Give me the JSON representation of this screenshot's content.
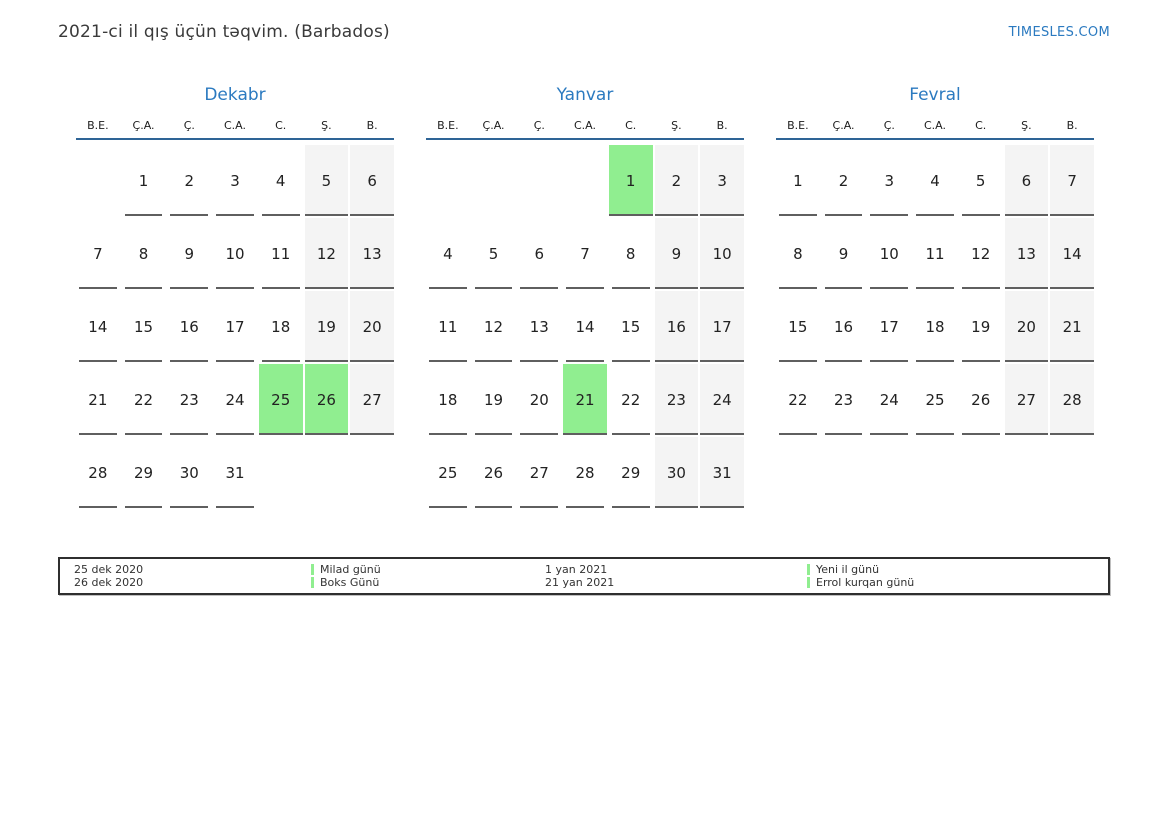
{
  "page": {
    "title": "2021-ci il qış üçün təqvim. (Barbados)",
    "brand": "TIMESLES.COM"
  },
  "colors": {
    "accent_blue": "#2b7ac0",
    "rule_blue": "#2e6496",
    "holiday_green": "#90ee90",
    "weekend_gray": "#f4f4f4",
    "underline_gray": "#5f5f5f"
  },
  "calendar": {
    "weekdays": [
      "B.E.",
      "Ç.A.",
      "Ç.",
      "C.A.",
      "C.",
      "Ş.",
      "B."
    ],
    "months": [
      {
        "name": "Dekabr",
        "weeks": [
          [
            {
              "d": "",
              "k": ""
            },
            {
              "d": "1",
              "k": "day"
            },
            {
              "d": "2",
              "k": "day"
            },
            {
              "d": "3",
              "k": "day"
            },
            {
              "d": "4",
              "k": "day"
            },
            {
              "d": "5",
              "k": "we"
            },
            {
              "d": "6",
              "k": "we"
            }
          ],
          [
            {
              "d": "7",
              "k": "day"
            },
            {
              "d": "8",
              "k": "day"
            },
            {
              "d": "9",
              "k": "day"
            },
            {
              "d": "10",
              "k": "day"
            },
            {
              "d": "11",
              "k": "day"
            },
            {
              "d": "12",
              "k": "we"
            },
            {
              "d": "13",
              "k": "we"
            }
          ],
          [
            {
              "d": "14",
              "k": "day"
            },
            {
              "d": "15",
              "k": "day"
            },
            {
              "d": "16",
              "k": "day"
            },
            {
              "d": "17",
              "k": "day"
            },
            {
              "d": "18",
              "k": "day"
            },
            {
              "d": "19",
              "k": "we"
            },
            {
              "d": "20",
              "k": "we"
            }
          ],
          [
            {
              "d": "21",
              "k": "day"
            },
            {
              "d": "22",
              "k": "day"
            },
            {
              "d": "23",
              "k": "day"
            },
            {
              "d": "24",
              "k": "day"
            },
            {
              "d": "25",
              "k": "hol"
            },
            {
              "d": "26",
              "k": "hol"
            },
            {
              "d": "27",
              "k": "we"
            }
          ],
          [
            {
              "d": "28",
              "k": "day"
            },
            {
              "d": "29",
              "k": "day"
            },
            {
              "d": "30",
              "k": "day"
            },
            {
              "d": "31",
              "k": "day"
            },
            {
              "d": "",
              "k": ""
            },
            {
              "d": "",
              "k": ""
            },
            {
              "d": "",
              "k": ""
            }
          ]
        ]
      },
      {
        "name": "Yanvar",
        "weeks": [
          [
            {
              "d": "",
              "k": ""
            },
            {
              "d": "",
              "k": ""
            },
            {
              "d": "",
              "k": ""
            },
            {
              "d": "",
              "k": ""
            },
            {
              "d": "1",
              "k": "hol"
            },
            {
              "d": "2",
              "k": "we"
            },
            {
              "d": "3",
              "k": "we"
            }
          ],
          [
            {
              "d": "4",
              "k": "day"
            },
            {
              "d": "5",
              "k": "day"
            },
            {
              "d": "6",
              "k": "day"
            },
            {
              "d": "7",
              "k": "day"
            },
            {
              "d": "8",
              "k": "day"
            },
            {
              "d": "9",
              "k": "we"
            },
            {
              "d": "10",
              "k": "we"
            }
          ],
          [
            {
              "d": "11",
              "k": "day"
            },
            {
              "d": "12",
              "k": "day"
            },
            {
              "d": "13",
              "k": "day"
            },
            {
              "d": "14",
              "k": "day"
            },
            {
              "d": "15",
              "k": "day"
            },
            {
              "d": "16",
              "k": "we"
            },
            {
              "d": "17",
              "k": "we"
            }
          ],
          [
            {
              "d": "18",
              "k": "day"
            },
            {
              "d": "19",
              "k": "day"
            },
            {
              "d": "20",
              "k": "day"
            },
            {
              "d": "21",
              "k": "hol"
            },
            {
              "d": "22",
              "k": "day"
            },
            {
              "d": "23",
              "k": "we"
            },
            {
              "d": "24",
              "k": "we"
            }
          ],
          [
            {
              "d": "25",
              "k": "day"
            },
            {
              "d": "26",
              "k": "day"
            },
            {
              "d": "27",
              "k": "day"
            },
            {
              "d": "28",
              "k": "day"
            },
            {
              "d": "29",
              "k": "day"
            },
            {
              "d": "30",
              "k": "we"
            },
            {
              "d": "31",
              "k": "we"
            }
          ]
        ]
      },
      {
        "name": "Fevral",
        "weeks": [
          [
            {
              "d": "1",
              "k": "day"
            },
            {
              "d": "2",
              "k": "day"
            },
            {
              "d": "3",
              "k": "day"
            },
            {
              "d": "4",
              "k": "day"
            },
            {
              "d": "5",
              "k": "day"
            },
            {
              "d": "6",
              "k": "we"
            },
            {
              "d": "7",
              "k": "we"
            }
          ],
          [
            {
              "d": "8",
              "k": "day"
            },
            {
              "d": "9",
              "k": "day"
            },
            {
              "d": "10",
              "k": "day"
            },
            {
              "d": "11",
              "k": "day"
            },
            {
              "d": "12",
              "k": "day"
            },
            {
              "d": "13",
              "k": "we"
            },
            {
              "d": "14",
              "k": "we"
            }
          ],
          [
            {
              "d": "15",
              "k": "day"
            },
            {
              "d": "16",
              "k": "day"
            },
            {
              "d": "17",
              "k": "day"
            },
            {
              "d": "18",
              "k": "day"
            },
            {
              "d": "19",
              "k": "day"
            },
            {
              "d": "20",
              "k": "we"
            },
            {
              "d": "21",
              "k": "we"
            }
          ],
          [
            {
              "d": "22",
              "k": "day"
            },
            {
              "d": "23",
              "k": "day"
            },
            {
              "d": "24",
              "k": "day"
            },
            {
              "d": "25",
              "k": "day"
            },
            {
              "d": "26",
              "k": "day"
            },
            {
              "d": "27",
              "k": "we"
            },
            {
              "d": "28",
              "k": "we"
            }
          ]
        ]
      }
    ]
  },
  "legend": {
    "groups": [
      {
        "kind": "dates",
        "lines": [
          "25 dek 2020",
          "26 dek 2020"
        ]
      },
      {
        "kind": "holidays",
        "lines": [
          "Milad günü",
          "Boks Günü"
        ]
      },
      {
        "kind": "dates",
        "lines": [
          "1 yan 2021",
          "21 yan 2021"
        ]
      },
      {
        "kind": "holidays",
        "lines": [
          "Yeni il günü",
          "Errol kurqan günü"
        ]
      }
    ]
  }
}
